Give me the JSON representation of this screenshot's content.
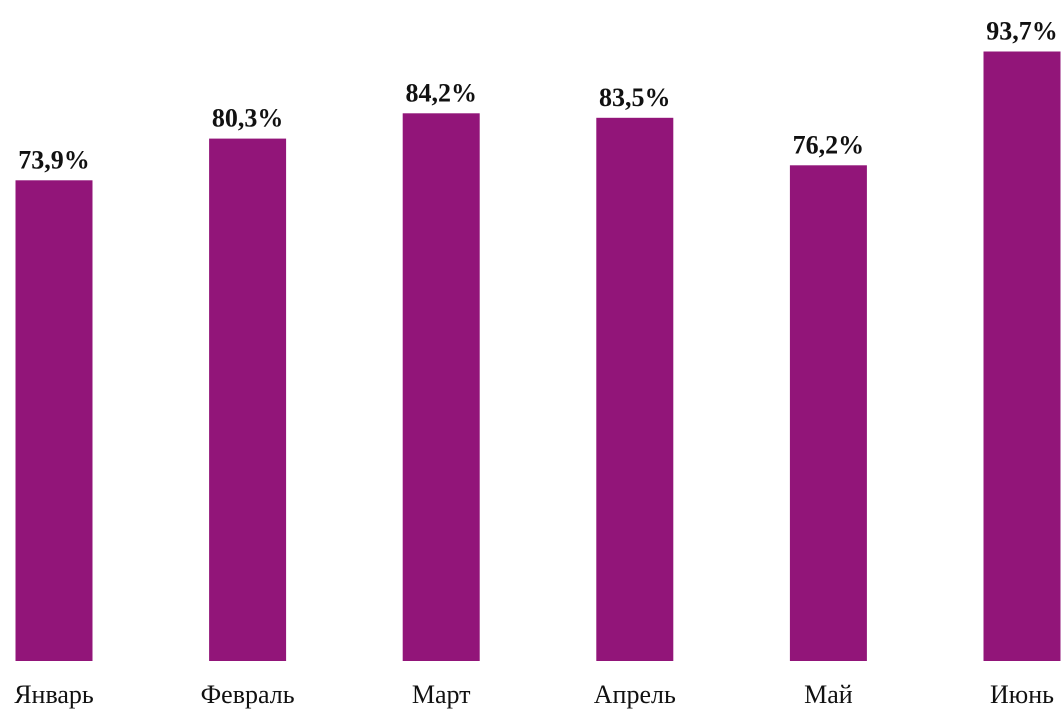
{
  "chart_data": {
    "type": "bar",
    "categories": [
      "Январь",
      "Февраль",
      "Март",
      "Апрель",
      "Май",
      "Июнь"
    ],
    "values": [
      73.9,
      80.3,
      84.2,
      83.5,
      76.2,
      93.7
    ],
    "data_labels": [
      "73,9%",
      "80,3%",
      "84,2%",
      "83,5%",
      "76,2%",
      "93,7%"
    ],
    "title": "",
    "xlabel": "",
    "ylabel": "",
    "ylim": [
      0,
      100
    ],
    "grid": false,
    "legend": "none",
    "bar_color": "#921579"
  }
}
